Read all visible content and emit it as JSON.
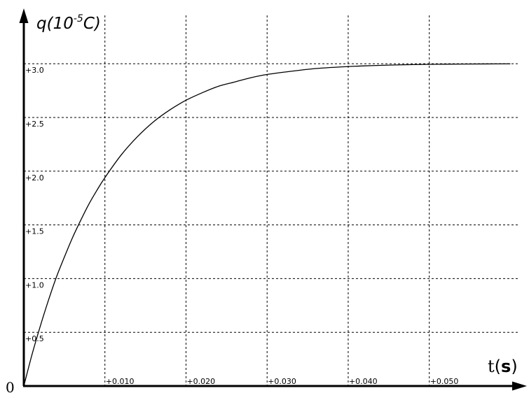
{
  "chart_data": {
    "type": "line",
    "title": "",
    "ylabel": {
      "prefix": "q(10",
      "exponent": "-5",
      "unit": "C",
      "suffix": ")"
    },
    "xlabel": {
      "symbol": "t",
      "open_paren": "(",
      "unit": "s",
      "close_paren": ")"
    },
    "origin_label": "0",
    "xlim": [
      0,
      0.061
    ],
    "ylim": [
      0,
      3.45
    ],
    "grid": true,
    "x_ticks": [
      {
        "value": 0.01,
        "label": "+0.010"
      },
      {
        "value": 0.02,
        "label": "+0.020"
      },
      {
        "value": 0.03,
        "label": "+0.030"
      },
      {
        "value": 0.04,
        "label": "+0.040"
      },
      {
        "value": 0.05,
        "label": "+0.050"
      }
    ],
    "y_ticks": [
      {
        "value": 0.5,
        "label": "+0.5"
      },
      {
        "value": 1.0,
        "label": "+1.0"
      },
      {
        "value": 1.5,
        "label": "+1.5"
      },
      {
        "value": 2.0,
        "label": "+2.0"
      },
      {
        "value": 2.5,
        "label": "+2.5"
      },
      {
        "value": 3.0,
        "label": "+3.0"
      }
    ],
    "series": [
      {
        "x": [
          0,
          0.001,
          0.002,
          0.003,
          0.004,
          0.005,
          0.006,
          0.007,
          0.008,
          0.009,
          0.01,
          0.012,
          0.014,
          0.016,
          0.018,
          0.02,
          0.022,
          0.024,
          0.026,
          0.028,
          0.03,
          0.033,
          0.036,
          0.039,
          0.042,
          0.045,
          0.048,
          0.051,
          0.054,
          0.057,
          0.06
        ],
        "y": [
          0,
          0.29,
          0.55,
          0.79,
          1.01,
          1.2,
          1.38,
          1.54,
          1.69,
          1.82,
          1.94,
          2.15,
          2.32,
          2.46,
          2.57,
          2.66,
          2.73,
          2.79,
          2.83,
          2.87,
          2.9,
          2.93,
          2.955,
          2.97,
          2.98,
          2.987,
          2.992,
          2.995,
          2.997,
          2.998,
          2.999
        ]
      }
    ]
  }
}
